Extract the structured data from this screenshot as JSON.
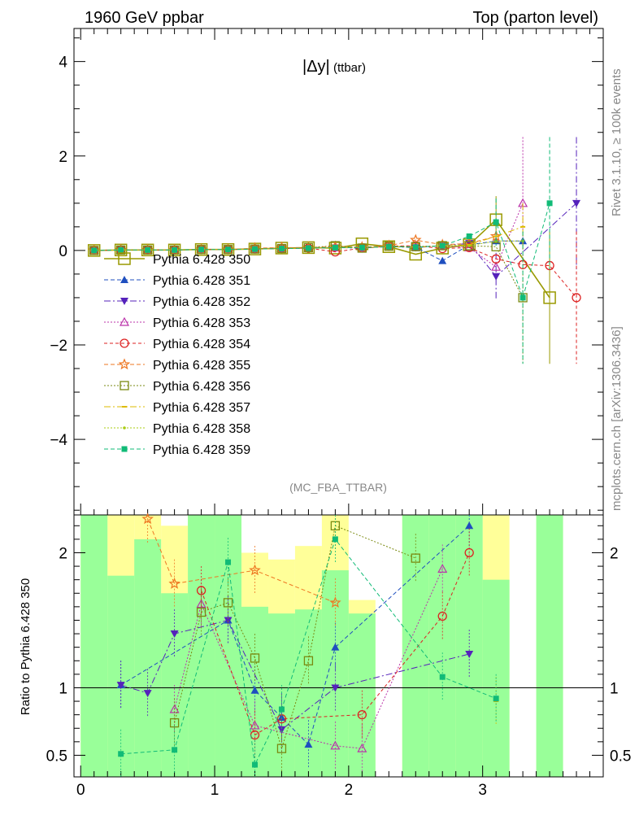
{
  "header": {
    "left": "1960 GeV ppbar",
    "right": "Top (parton level)"
  },
  "side_labels": {
    "rivet": "Rivet 3.1.10, ≥ 100k events",
    "mcplots": "mcplots.cern.ch [arXiv:1306.3436]"
  },
  "plot": {
    "title_main": "|Δy|",
    "title_sub": "(ttbar)",
    "analysis_tag": "(MC_FBA_TTBAR)",
    "ratio_ylabel": "Ratio to Pythia 6.428 350"
  },
  "chart_data": {
    "type": "line",
    "x": [
      0.1,
      0.3,
      0.5,
      0.7,
      0.9,
      1.1,
      1.3,
      1.5,
      1.7,
      1.9,
      2.1,
      2.3,
      2.5,
      2.7,
      2.9,
      3.1,
      3.3,
      3.5,
      3.7
    ],
    "main_xlim": [
      -0.05,
      3.9
    ],
    "main_ylim": [
      -5.6,
      4.7
    ],
    "main_yticks": [
      -4,
      -2,
      0,
      2,
      4
    ],
    "xticks": [
      0,
      1,
      2,
      3
    ],
    "ratio_ylim": [
      0.34,
      2.28
    ],
    "ratio_yticks": [
      0.5,
      1,
      2
    ],
    "series": [
      {
        "name": "Pythia 6.428 350",
        "color": "#999900",
        "marker": "open-square",
        "dash": "",
        "big": true,
        "values": [
          0.0,
          0.01,
          0.01,
          0.01,
          0.02,
          0.02,
          0.03,
          0.05,
          0.06,
          0.05,
          0.14,
          0.08,
          -0.08,
          0.05,
          0.12,
          0.65,
          null,
          -1.0,
          null
        ]
      },
      {
        "name": "Pythia 6.428 351",
        "color": "#1f4fbf",
        "marker": "up-triangle",
        "dash": "5,3",
        "values": [
          0.0,
          0.01,
          0.01,
          0.01,
          0.02,
          0.02,
          0.03,
          0.04,
          0.05,
          0.07,
          0.07,
          0.09,
          0.07,
          -0.22,
          0.12,
          0.2,
          0.2,
          null,
          null
        ]
      },
      {
        "name": "Pythia 6.428 352",
        "color": "#5522bb",
        "marker": "down-triangle",
        "dash": "8,3,2,3",
        "values": [
          0.0,
          0.01,
          0.01,
          0.01,
          0.02,
          0.02,
          0.03,
          0.04,
          0.05,
          0.06,
          0.05,
          0.08,
          0.06,
          0.1,
          0.15,
          -0.55,
          null,
          null,
          1.0
        ]
      },
      {
        "name": "Pythia 6.428 353",
        "color": "#bb33aa",
        "marker": "open-up-triangle",
        "dash": "2,2",
        "values": [
          0.0,
          0.01,
          0.01,
          0.01,
          0.02,
          0.02,
          0.03,
          0.04,
          0.05,
          0.06,
          0.06,
          0.09,
          0.08,
          0.1,
          0.06,
          -0.35,
          1.0,
          null,
          null
        ]
      },
      {
        "name": "Pythia 6.428 354",
        "color": "#dd2222",
        "marker": "open-circle",
        "dash": "4,3",
        "values": [
          0.0,
          0.01,
          0.01,
          0.01,
          0.02,
          0.02,
          0.03,
          0.04,
          0.05,
          -0.03,
          0.05,
          0.09,
          0.1,
          0.04,
          0.06,
          -0.18,
          -0.3,
          -0.32,
          -1.0
        ]
      },
      {
        "name": "Pythia 6.428 355",
        "color": "#ee7722",
        "marker": "open-star",
        "dash": "5,3",
        "values": [
          0.0,
          0.01,
          0.01,
          0.01,
          0.02,
          0.02,
          0.05,
          0.06,
          0.06,
          0.08,
          0.07,
          0.1,
          0.22,
          0.12,
          0.15,
          0.3,
          null,
          null,
          null
        ]
      },
      {
        "name": "Pythia 6.428 356",
        "color": "#7a8a11",
        "marker": "open-square-small",
        "dash": "2,2",
        "values": [
          0.0,
          0.01,
          0.01,
          0.01,
          0.02,
          0.02,
          0.03,
          0.04,
          0.06,
          0.1,
          0.05,
          0.09,
          0.08,
          0.1,
          0.1,
          0.08,
          -1.0,
          null,
          null
        ]
      },
      {
        "name": "Pythia 6.428 357",
        "color": "#ddbb00",
        "marker": "dash-dot",
        "dash": "8,3,2,3",
        "values": [
          0.0,
          0.01,
          0.01,
          0.01,
          0.02,
          0.02,
          0.03,
          0.04,
          0.05,
          0.06,
          0.06,
          0.08,
          0.07,
          0.1,
          0.12,
          0.3,
          0.5,
          null,
          null
        ]
      },
      {
        "name": "Pythia 6.428 358",
        "color": "#aacc11",
        "marker": "small-dot",
        "dash": "2,2",
        "values": [
          0.0,
          0.01,
          0.01,
          0.01,
          0.02,
          0.02,
          0.03,
          0.04,
          0.05,
          0.06,
          0.06,
          0.08,
          0.07,
          0.1,
          0.1,
          0.2,
          0.2,
          null,
          null
        ]
      },
      {
        "name": "Pythia 6.428 359",
        "color": "#11bb77",
        "marker": "filled-square-small",
        "dash": "5,3",
        "values": [
          0.0,
          0.01,
          0.01,
          0.01,
          0.02,
          0.02,
          0.03,
          0.04,
          0.05,
          0.06,
          0.06,
          0.08,
          0.07,
          0.1,
          0.3,
          0.6,
          -1.0,
          1.0,
          null
        ]
      }
    ],
    "ratio_series": [
      {
        "name": "Pythia 6.428 351",
        "values": [
          null,
          1.02,
          null,
          null,
          null,
          1.5,
          0.98,
          0.78,
          0.58,
          1.3,
          null,
          null,
          null,
          null,
          2.2,
          null,
          null,
          null,
          null
        ]
      },
      {
        "name": "Pythia 6.428 352",
        "values": [
          null,
          1.02,
          0.96,
          1.4,
          null,
          1.5,
          null,
          0.69,
          null,
          1.0,
          null,
          null,
          null,
          null,
          1.25,
          null,
          null,
          null,
          null
        ]
      },
      {
        "name": "Pythia 6.428 353",
        "values": [
          null,
          null,
          null,
          0.84,
          1.62,
          null,
          0.72,
          null,
          null,
          0.57,
          0.55,
          null,
          null,
          1.88,
          null,
          null,
          null,
          null,
          null
        ]
      },
      {
        "name": "Pythia 6.428 354",
        "values": [
          null,
          null,
          null,
          null,
          1.72,
          null,
          0.65,
          0.77,
          null,
          null,
          0.8,
          null,
          null,
          1.53,
          2.0,
          null,
          null,
          null,
          null
        ]
      },
      {
        "name": "Pythia 6.428 355",
        "values": [
          null,
          null,
          2.25,
          1.77,
          null,
          null,
          1.87,
          null,
          null,
          1.63,
          null,
          null,
          null,
          null,
          null,
          null,
          null,
          null,
          null
        ]
      },
      {
        "name": "Pythia 6.428 356",
        "values": [
          null,
          null,
          null,
          0.74,
          1.56,
          1.63,
          1.22,
          0.55,
          1.2,
          2.2,
          null,
          null,
          1.96,
          null,
          null,
          null,
          null,
          null,
          null
        ]
      },
      {
        "name": "Pythia 6.428 357",
        "values": [
          null,
          null,
          null,
          null,
          null,
          null,
          null,
          null,
          null,
          null,
          null,
          null,
          null,
          null,
          null,
          0.9,
          null,
          null,
          null
        ]
      },
      {
        "name": "Pythia 6.428 359",
        "values": [
          null,
          0.51,
          null,
          0.54,
          null,
          1.93,
          0.43,
          0.84,
          null,
          2.1,
          null,
          null,
          null,
          1.08,
          null,
          0.92,
          null,
          null,
          null
        ]
      }
    ]
  }
}
